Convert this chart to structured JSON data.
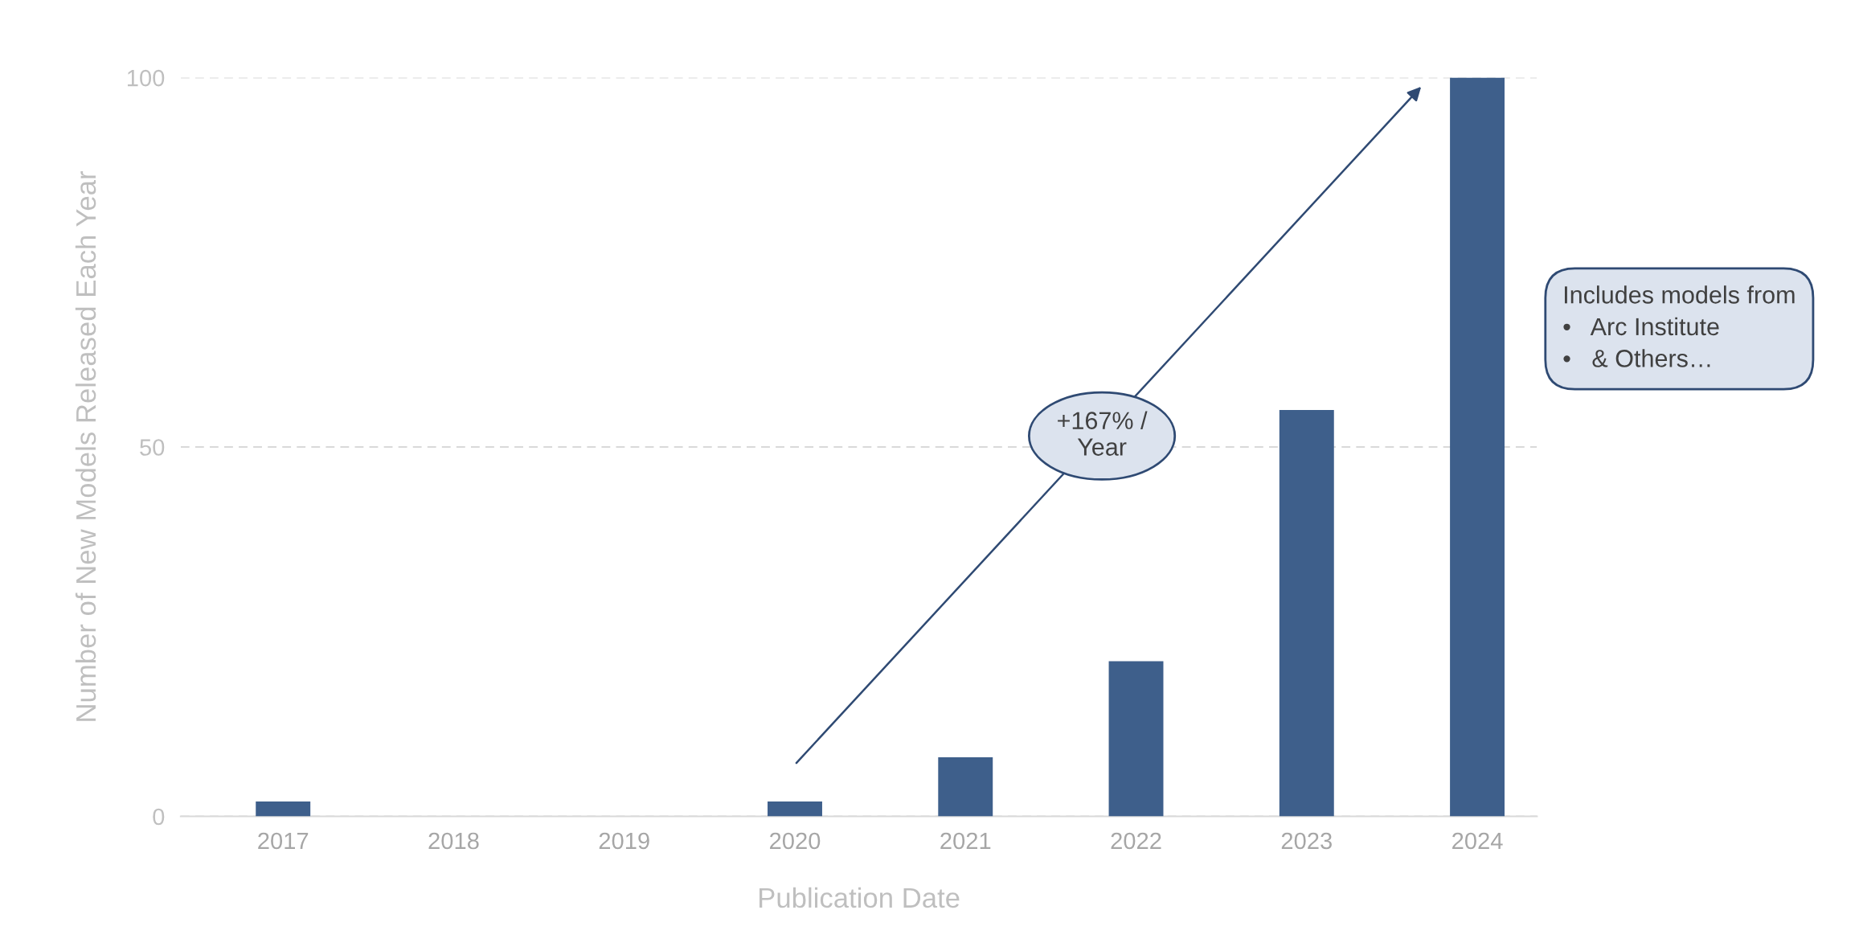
{
  "chart_data": {
    "type": "bar",
    "xlabel": "Publication Date",
    "ylabel": "Number of New Models Released Each Year",
    "categories": [
      "2017",
      "2018",
      "2019",
      "2020",
      "2021",
      "2022",
      "2023",
      "2024"
    ],
    "values": [
      2,
      0,
      0,
      2,
      8,
      21,
      55,
      100
    ],
    "color": "#3e5f8b",
    "ylim": [
      0,
      100
    ],
    "yticks": [
      0,
      50,
      100
    ],
    "grid": "y",
    "legend": false,
    "annotations": [
      "+167% /\nYear",
      "Includes models from\n•   Arc Institute\n•   & Others…"
    ]
  }
}
